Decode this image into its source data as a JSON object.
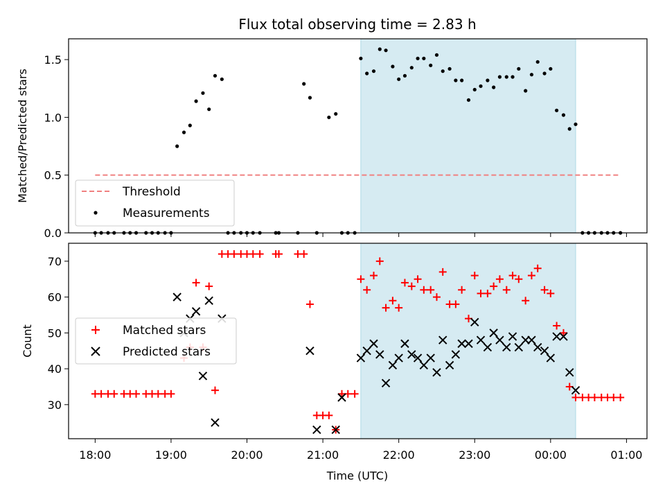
{
  "chart_data": [
    {
      "type": "scatter",
      "title": "Flux total observing time = 2.83 h",
      "xlabel": "",
      "ylabel": "Matched/Predicted stars",
      "xlim": [
        -0.35,
        7.27
      ],
      "ylim": [
        0,
        1.68
      ],
      "yticks": [
        0.0,
        0.5,
        1.0,
        1.5
      ],
      "ytick_labels": [
        "0.0",
        "0.5",
        "1.0",
        "1.5"
      ],
      "grid": false,
      "legend_position": "lower-left",
      "observing_window_hours": [
        3.5,
        6.33
      ],
      "series": [
        {
          "name": "Threshold",
          "kind": "dashed-line",
          "color": "#f08080",
          "x": [
            0.0,
            6.92
          ],
          "y": [
            0.5,
            0.5
          ]
        },
        {
          "name": "Measurements",
          "kind": "dot",
          "color": "#000000",
          "x": [
            0.0,
            0.08,
            0.17,
            0.25,
            0.38,
            0.46,
            0.54,
            0.67,
            0.75,
            0.83,
            0.92,
            1.0,
            1.08,
            1.17,
            1.25,
            1.33,
            1.42,
            1.5,
            1.58,
            1.67,
            1.75,
            1.83,
            1.92,
            2.0,
            2.08,
            2.17,
            2.38,
            2.42,
            2.67,
            2.75,
            2.83,
            2.92,
            3.08,
            3.17,
            3.25,
            3.33,
            3.42,
            3.5,
            3.58,
            3.67,
            3.75,
            3.83,
            3.92,
            4.0,
            4.08,
            4.17,
            4.25,
            4.33,
            4.42,
            4.5,
            4.58,
            4.67,
            4.75,
            4.83,
            4.92,
            5.0,
            5.08,
            5.17,
            5.25,
            5.33,
            5.42,
            5.5,
            5.58,
            5.67,
            5.75,
            5.83,
            5.92,
            6.0,
            6.08,
            6.17,
            6.25,
            6.33,
            6.42,
            6.5,
            6.58,
            6.67,
            6.75,
            6.83,
            6.92
          ],
          "y": [
            0,
            0,
            0,
            0,
            0,
            0,
            0,
            0,
            0,
            0,
            0,
            0,
            0.75,
            0.87,
            0.93,
            1.14,
            1.21,
            1.07,
            1.36,
            1.33,
            0,
            0,
            0,
            0,
            0,
            0,
            0,
            0,
            0,
            1.29,
            1.17,
            0,
            1.0,
            1.03,
            0,
            0,
            0,
            1.51,
            1.38,
            1.4,
            1.59,
            1.58,
            1.44,
            1.33,
            1.36,
            1.43,
            1.51,
            1.51,
            1.45,
            1.54,
            1.4,
            1.42,
            1.32,
            1.32,
            1.15,
            1.24,
            1.27,
            1.32,
            1.26,
            1.35,
            1.35,
            1.35,
            1.42,
            1.23,
            1.37,
            1.48,
            1.38,
            1.42,
            1.06,
            1.02,
            0.9,
            0.94,
            0,
            0,
            0,
            0,
            0,
            0,
            0
          ]
        }
      ]
    },
    {
      "type": "scatter",
      "title": "",
      "xlabel": "Time (UTC)",
      "ylabel": "Count",
      "xlim": [
        -0.35,
        7.27
      ],
      "ylim": [
        20.5,
        75
      ],
      "xticks": [
        0,
        1,
        2,
        3,
        4,
        5,
        6,
        7
      ],
      "xtick_labels": [
        "18:00",
        "19:00",
        "20:00",
        "21:00",
        "22:00",
        "23:00",
        "00:00",
        "01:00"
      ],
      "yticks": [
        30,
        40,
        50,
        60,
        70
      ],
      "ytick_labels": [
        "30",
        "40",
        "50",
        "60",
        "70"
      ],
      "grid": false,
      "legend_position": "center-left",
      "observing_window_hours": [
        3.5,
        6.33
      ],
      "series": [
        {
          "name": "Matched stars",
          "kind": "plus",
          "color": "#ff0000",
          "x": [
            0.0,
            0.08,
            0.17,
            0.25,
            0.38,
            0.46,
            0.54,
            0.67,
            0.75,
            0.83,
            0.92,
            1.0,
            1.17,
            1.25,
            1.33,
            1.42,
            1.5,
            1.58,
            1.67,
            1.75,
            1.83,
            1.92,
            2.0,
            2.08,
            2.17,
            2.38,
            2.42,
            2.67,
            2.75,
            2.83,
            2.92,
            3.0,
            3.08,
            3.17,
            3.25,
            3.33,
            3.42,
            3.5,
            3.58,
            3.67,
            3.75,
            3.83,
            3.92,
            4.0,
            4.08,
            4.17,
            4.25,
            4.33,
            4.42,
            4.5,
            4.58,
            4.67,
            4.75,
            4.83,
            4.92,
            5.0,
            5.08,
            5.17,
            5.25,
            5.33,
            5.42,
            5.5,
            5.58,
            5.67,
            5.75,
            5.83,
            5.92,
            6.0,
            6.08,
            6.17,
            6.25,
            6.33,
            6.42,
            6.5,
            6.58,
            6.67,
            6.75,
            6.83,
            6.92
          ],
          "y": [
            33,
            33,
            33,
            33,
            33,
            33,
            33,
            33,
            33,
            33,
            33,
            33,
            43,
            46,
            64,
            46,
            63,
            34,
            72,
            72,
            72,
            72,
            72,
            72,
            72,
            72,
            72,
            72,
            72,
            58,
            27,
            27,
            27,
            23,
            33,
            33,
            33,
            65,
            62,
            66,
            70,
            57,
            59,
            57,
            64,
            63,
            65,
            62,
            62,
            60,
            67,
            58,
            58,
            62,
            54,
            66,
            61,
            61,
            63,
            65,
            62,
            66,
            65,
            59,
            66,
            68,
            62,
            61,
            52,
            50,
            35,
            32,
            32,
            32,
            32,
            32,
            32,
            32,
            32
          ]
        },
        {
          "name": "Predicted stars",
          "kind": "x",
          "color": "#000000",
          "x": [
            1.08,
            1.17,
            1.25,
            1.33,
            1.42,
            1.5,
            1.58,
            1.67,
            2.83,
            2.92,
            3.17,
            3.25,
            3.5,
            3.58,
            3.67,
            3.75,
            3.83,
            3.92,
            4.0,
            4.08,
            4.17,
            4.25,
            4.33,
            4.42,
            4.5,
            4.58,
            4.67,
            4.75,
            4.83,
            4.92,
            5.0,
            5.08,
            5.17,
            5.25,
            5.33,
            5.42,
            5.5,
            5.58,
            5.67,
            5.75,
            5.83,
            5.92,
            6.0,
            6.08,
            6.17,
            6.25,
            6.33
          ],
          "y": [
            60,
            50,
            54,
            56,
            38,
            59,
            25,
            54,
            45,
            23,
            23,
            32,
            43,
            45,
            47,
            44,
            36,
            41,
            43,
            47,
            44,
            43,
            41,
            43,
            39,
            48,
            41,
            44,
            47,
            47,
            53,
            48,
            46,
            50,
            48,
            46,
            49,
            46,
            48,
            48,
            46,
            45,
            43,
            49,
            49,
            39,
            34
          ]
        }
      ]
    }
  ]
}
